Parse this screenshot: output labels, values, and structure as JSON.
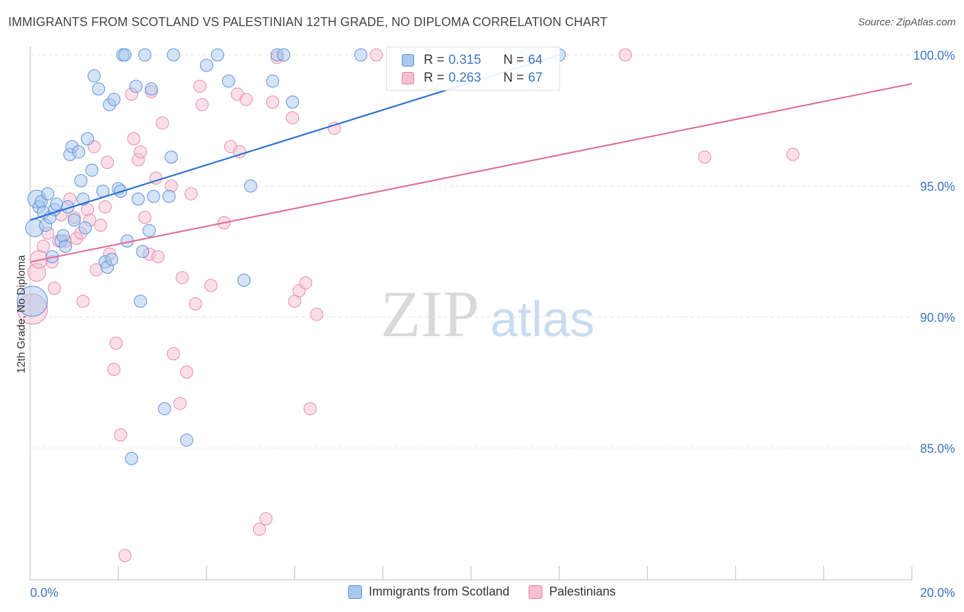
{
  "title": "IMMIGRANTS FROM SCOTLAND VS PALESTINIAN 12TH GRADE, NO DIPLOMA CORRELATION CHART",
  "source": "Source: ZipAtlas.com",
  "watermark": {
    "zip": "ZIP",
    "atlas": "atlas"
  },
  "legend": {
    "rows": [
      {
        "r_label": "R =",
        "r_value": "0.315",
        "n_label": "N =",
        "n_value": "64",
        "color": "#a9c8f0",
        "border": "#5b8fd6"
      },
      {
        "r_label": "R =",
        "r_value": "0.263",
        "n_label": "N =",
        "n_value": "67",
        "color": "#f7bfd1",
        "border": "#e07fa0"
      }
    ]
  },
  "colors": {
    "blue_fill": "#a9c8f0",
    "blue_stroke": "#5b8fd6",
    "blue_line": "#2a6fcf",
    "pink_fill": "#f7bfd1",
    "pink_stroke": "#e48aa8",
    "pink_line": "#e07099",
    "tick_text": "#3a74c4",
    "grid": "#e3e3e3"
  },
  "chart_data": {
    "type": "scatter",
    "title": "IMMIGRANTS FROM SCOTLAND VS PALESTINIAN 12TH GRADE, NO DIPLOMA CORRELATION CHART",
    "xlabel": "",
    "ylabel": "12th Grade, No Diploma",
    "xlim": [
      0,
      20
    ],
    "ylim": [
      80.5,
      100.5
    ],
    "x_tick_labels": [
      "0.0%",
      "20.0%"
    ],
    "y_ticks": [
      85,
      90,
      95,
      100
    ],
    "y_tick_labels": [
      "85.0%",
      "90.0%",
      "95.0%",
      "100.0%"
    ],
    "grid": true,
    "series": [
      {
        "name": "Immigrants from Scotland",
        "r": 0.315,
        "n": 64,
        "trend": {
          "x": [
            0,
            12
          ],
          "y": [
            93.7,
            100.0
          ]
        },
        "points": [
          [
            0.05,
            90.6
          ],
          [
            0.1,
            93.4
          ],
          [
            0.15,
            94.5
          ],
          [
            0.2,
            94.2
          ],
          [
            0.25,
            94.4
          ],
          [
            0.3,
            94.0
          ],
          [
            0.35,
            93.5
          ],
          [
            0.4,
            94.7
          ],
          [
            0.45,
            93.8
          ],
          [
            0.5,
            92.3
          ],
          [
            0.55,
            94.1
          ],
          [
            0.6,
            94.3
          ],
          [
            0.7,
            92.9
          ],
          [
            0.75,
            93.1
          ],
          [
            0.8,
            92.7
          ],
          [
            0.85,
            94.2
          ],
          [
            0.9,
            96.2
          ],
          [
            0.95,
            96.5
          ],
          [
            1.0,
            93.7
          ],
          [
            1.1,
            96.3
          ],
          [
            1.15,
            95.2
          ],
          [
            1.2,
            94.5
          ],
          [
            1.25,
            93.4
          ],
          [
            1.3,
            96.8
          ],
          [
            1.4,
            95.6
          ],
          [
            1.45,
            99.2
          ],
          [
            1.55,
            98.7
          ],
          [
            1.65,
            94.8
          ],
          [
            1.7,
            92.1
          ],
          [
            1.75,
            91.9
          ],
          [
            1.8,
            98.1
          ],
          [
            1.85,
            92.2
          ],
          [
            1.9,
            98.3
          ],
          [
            2.0,
            94.9
          ],
          [
            2.05,
            94.8
          ],
          [
            2.1,
            100.0
          ],
          [
            2.15,
            100.0
          ],
          [
            2.2,
            92.9
          ],
          [
            2.3,
            84.6
          ],
          [
            2.4,
            98.8
          ],
          [
            2.45,
            94.5
          ],
          [
            2.5,
            90.6
          ],
          [
            2.55,
            92.5
          ],
          [
            2.6,
            100.0
          ],
          [
            2.7,
            93.3
          ],
          [
            2.75,
            98.7
          ],
          [
            2.8,
            94.6
          ],
          [
            3.05,
            86.5
          ],
          [
            3.15,
            94.6
          ],
          [
            3.2,
            96.1
          ],
          [
            3.25,
            100.0
          ],
          [
            3.55,
            85.3
          ],
          [
            4.0,
            99.6
          ],
          [
            4.25,
            100.0
          ],
          [
            4.5,
            99.0
          ],
          [
            4.85,
            91.4
          ],
          [
            5.0,
            95.0
          ],
          [
            5.5,
            99.0
          ],
          [
            5.6,
            100.0
          ],
          [
            5.75,
            100.0
          ],
          [
            5.95,
            98.2
          ],
          [
            7.5,
            100.0
          ],
          [
            11.25,
            100.0
          ],
          [
            12.0,
            100.0
          ]
        ]
      },
      {
        "name": "Palestinians",
        "r": 0.263,
        "n": 67,
        "trend": {
          "x": [
            0,
            20
          ],
          "y": [
            92.1,
            98.9
          ]
        },
        "points": [
          [
            0.05,
            90.3
          ],
          [
            0.15,
            91.7
          ],
          [
            0.2,
            92.2
          ],
          [
            0.3,
            92.7
          ],
          [
            0.4,
            93.2
          ],
          [
            0.5,
            92.1
          ],
          [
            0.55,
            91.1
          ],
          [
            0.65,
            92.9
          ],
          [
            0.7,
            93.9
          ],
          [
            0.8,
            92.9
          ],
          [
            0.9,
            94.5
          ],
          [
            1.0,
            93.8
          ],
          [
            1.05,
            93.0
          ],
          [
            1.15,
            93.2
          ],
          [
            1.2,
            90.6
          ],
          [
            1.3,
            94.1
          ],
          [
            1.35,
            93.7
          ],
          [
            1.45,
            96.5
          ],
          [
            1.5,
            91.8
          ],
          [
            1.6,
            93.5
          ],
          [
            1.7,
            94.2
          ],
          [
            1.75,
            95.9
          ],
          [
            1.8,
            92.4
          ],
          [
            1.9,
            88.0
          ],
          [
            1.95,
            89.0
          ],
          [
            2.05,
            85.5
          ],
          [
            2.15,
            80.9
          ],
          [
            2.3,
            98.5
          ],
          [
            2.35,
            96.8
          ],
          [
            2.45,
            96.0
          ],
          [
            2.5,
            96.3
          ],
          [
            2.6,
            93.8
          ],
          [
            2.7,
            92.4
          ],
          [
            2.75,
            98.6
          ],
          [
            2.85,
            95.3
          ],
          [
            2.9,
            92.3
          ],
          [
            3.0,
            97.4
          ],
          [
            3.2,
            95.0
          ],
          [
            3.25,
            88.6
          ],
          [
            3.4,
            86.7
          ],
          [
            3.45,
            91.5
          ],
          [
            3.55,
            87.9
          ],
          [
            3.65,
            94.7
          ],
          [
            3.75,
            90.5
          ],
          [
            3.85,
            98.8
          ],
          [
            3.9,
            98.1
          ],
          [
            4.1,
            91.2
          ],
          [
            4.4,
            93.6
          ],
          [
            4.55,
            96.5
          ],
          [
            4.7,
            98.5
          ],
          [
            4.75,
            96.3
          ],
          [
            4.9,
            98.3
          ],
          [
            5.2,
            81.9
          ],
          [
            5.35,
            82.3
          ],
          [
            5.5,
            98.2
          ],
          [
            5.6,
            99.9
          ],
          [
            5.95,
            97.6
          ],
          [
            6.0,
            90.6
          ],
          [
            6.1,
            91.0
          ],
          [
            6.25,
            91.3
          ],
          [
            6.35,
            86.5
          ],
          [
            6.5,
            90.1
          ],
          [
            6.9,
            97.2
          ],
          [
            7.85,
            100.0
          ],
          [
            13.5,
            100.0
          ],
          [
            15.3,
            96.1
          ],
          [
            17.3,
            96.2
          ]
        ]
      }
    ]
  }
}
